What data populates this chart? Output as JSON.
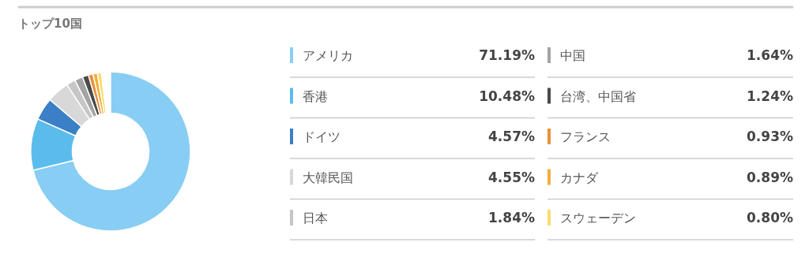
{
  "chart_data": {
    "type": "donut",
    "title": "トップ10国",
    "categories": [
      "アメリカ",
      "香港",
      "ドイツ",
      "大韓民国",
      "日本",
      "中国",
      "台湾、中国省",
      "フランス",
      "カナダ",
      "スウェーデン"
    ],
    "values": [
      71.19,
      10.48,
      4.57,
      4.55,
      1.84,
      1.64,
      1.24,
      0.93,
      0.89,
      0.8
    ],
    "value_labels": [
      "71.19%",
      "10.48%",
      "4.57%",
      "4.55%",
      "1.84%",
      "1.64%",
      "1.24%",
      "0.93%",
      "0.89%",
      "0.80%"
    ],
    "colors": [
      "#88cdf3",
      "#5bbcec",
      "#3b80c6",
      "#d8d8d8",
      "#c6c6c6",
      "#a3a3a3",
      "#4a4a4a",
      "#e8913a",
      "#f2af3f",
      "#f8dc6c"
    ],
    "legend": "right"
  }
}
